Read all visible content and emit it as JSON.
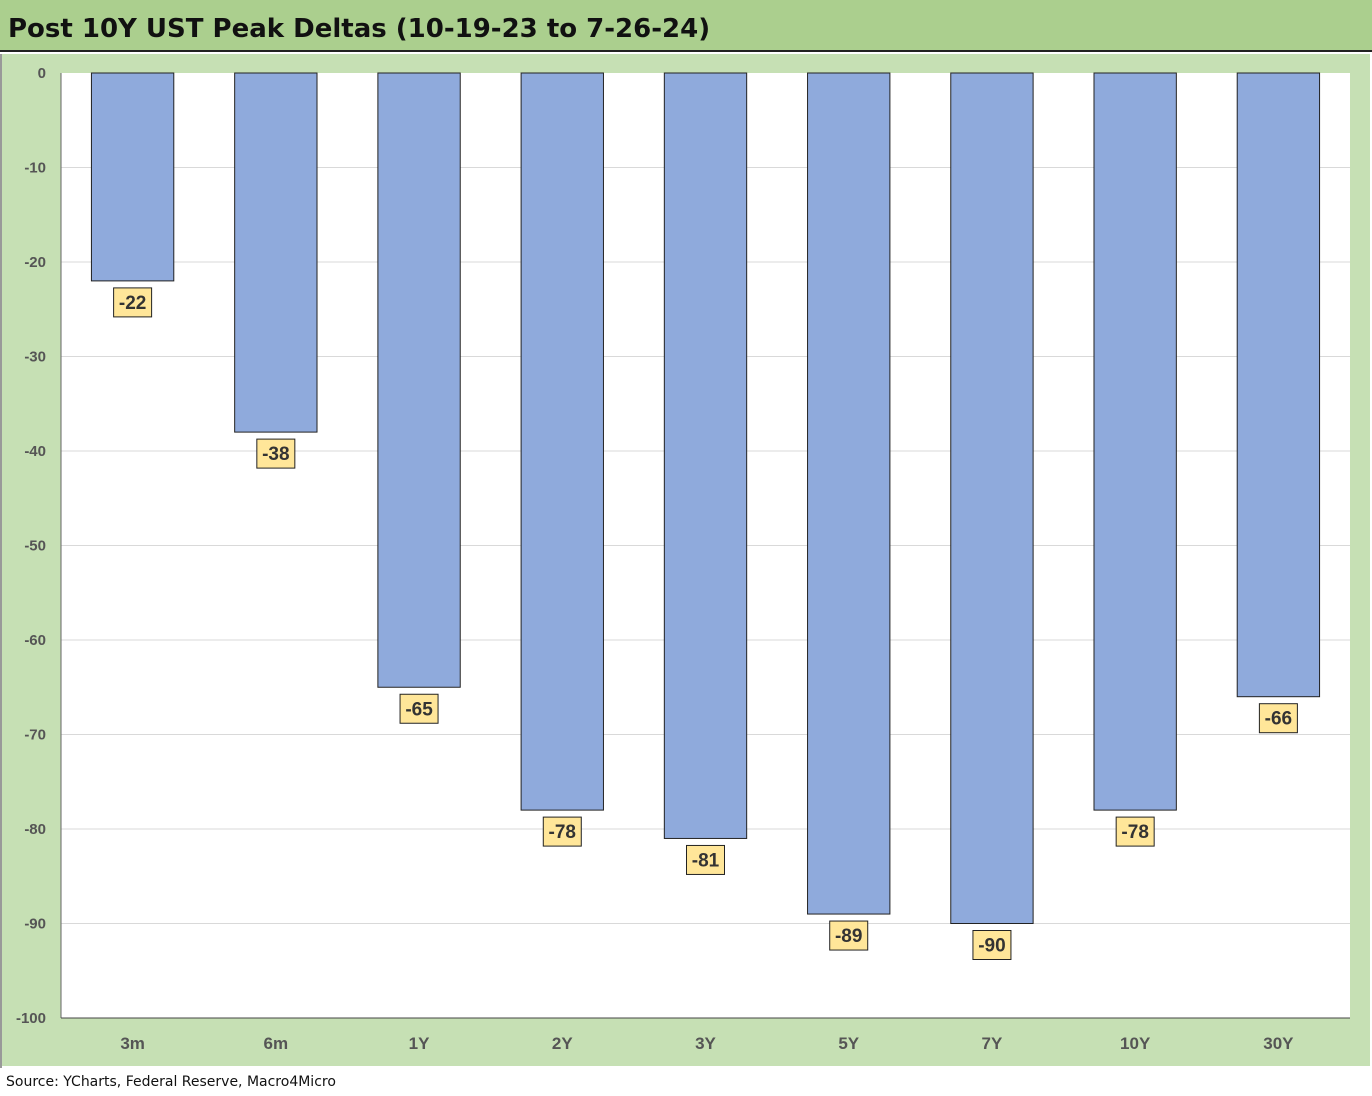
{
  "title": "Post 10Y UST Peak Deltas (10-19-23 to 7-26-24)",
  "source": "Source: YCharts, Federal Reserve, Macro4Micro",
  "colors": {
    "header_bg": "#abcf8e",
    "chart_bg": "#c6e0b4",
    "plot_bg": "#ffffff",
    "bar_fill": "#8faadc",
    "label_bg": "#ffe699",
    "text": "#333333"
  },
  "chart_data": {
    "type": "bar",
    "categories": [
      "3m",
      "6m",
      "1Y",
      "2Y",
      "3Y",
      "5Y",
      "7Y",
      "10Y",
      "30Y"
    ],
    "values": [
      -22,
      -38,
      -65,
      -78,
      -81,
      -89,
      -90,
      -78,
      -66
    ],
    "data_labels": [
      "-22",
      "-38",
      "-65",
      "-78",
      "-81",
      "-89",
      "-90",
      "-78",
      "-66"
    ],
    "ylim": [
      -100,
      0
    ],
    "yticks": [
      0,
      -10,
      -20,
      -30,
      -40,
      -50,
      -60,
      -70,
      -80,
      -90,
      -100
    ],
    "ytick_labels": [
      "0",
      "-10",
      "-20",
      "-30",
      "-40",
      "-50",
      "-60",
      "-70",
      "-80",
      "-90",
      "-100"
    ],
    "grid": true,
    "legend": "none",
    "xlabel": "",
    "ylabel": ""
  }
}
